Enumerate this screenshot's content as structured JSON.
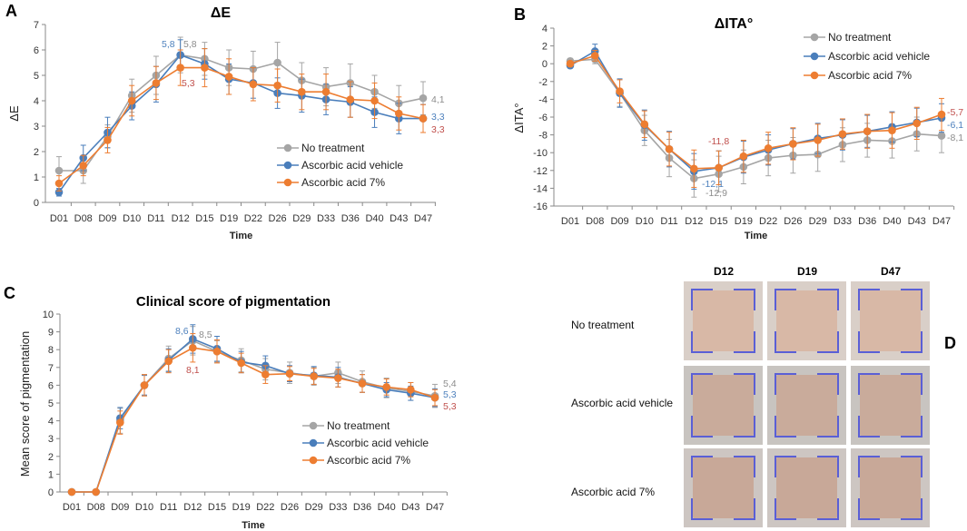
{
  "panels": {
    "A": "A",
    "B": "B",
    "C": "C",
    "D": "D"
  },
  "colors": {
    "no_treatment": "#A5A5A5",
    "vehicle": "#4A7EBB",
    "ac7": "#ED7D31",
    "label_gray": "#8C8C8C",
    "label_blue": "#4E81BD",
    "label_red": "#C0504D"
  },
  "chart_data": [
    {
      "id": "A",
      "type": "line",
      "title": "ΔE",
      "xlabel": "Time",
      "ylabel": "ΔE",
      "ylim": [
        0,
        7
      ],
      "yticks": [
        0,
        1,
        2,
        3,
        4,
        5,
        6,
        7
      ],
      "legend": "bottom-right",
      "grid": false,
      "categories": [
        "D01",
        "D08",
        "D09",
        "D10",
        "D11",
        "D12",
        "D15",
        "D19",
        "D22",
        "D26",
        "D29",
        "D33",
        "D36",
        "D40",
        "D43",
        "D47"
      ],
      "series": [
        {
          "name": "No treatment",
          "color": "#A5A5A5",
          "values": [
            1.25,
            1.25,
            2.6,
            4.2,
            5.0,
            5.8,
            5.65,
            5.3,
            5.25,
            5.5,
            4.8,
            4.55,
            4.7,
            4.35,
            3.9,
            4.1
          ],
          "error": [
            0.55,
            0.5,
            0.45,
            0.65,
            0.75,
            0.7,
            0.65,
            0.7,
            0.7,
            0.8,
            0.7,
            0.75,
            0.75,
            0.65,
            0.7,
            0.65
          ]
        },
        {
          "name": "Ascorbic acid vehicle",
          "color": "#4A7EBB",
          "values": [
            0.4,
            1.75,
            2.75,
            3.8,
            4.65,
            5.8,
            5.45,
            4.85,
            4.7,
            4.3,
            4.2,
            4.05,
            3.95,
            3.55,
            3.3,
            3.3
          ],
          "error": [
            0.15,
            0.5,
            0.6,
            0.55,
            0.7,
            0.6,
            0.6,
            0.6,
            0.6,
            0.6,
            0.65,
            0.6,
            0.6,
            0.6,
            0.6,
            0.55
          ]
        },
        {
          "name": "Ascorbic acid 7%",
          "color": "#ED7D31",
          "values": [
            0.75,
            1.45,
            2.45,
            4.0,
            4.7,
            5.3,
            5.3,
            4.95,
            4.65,
            4.6,
            4.35,
            4.35,
            4.05,
            4.0,
            3.5,
            3.3
          ],
          "error": [
            0.3,
            0.4,
            0.5,
            0.6,
            0.65,
            0.7,
            0.75,
            0.7,
            0.65,
            0.65,
            0.7,
            0.7,
            0.7,
            0.7,
            0.65,
            0.55
          ]
        }
      ],
      "annotations": [
        {
          "text": "5,8",
          "color": "#4E81BD"
        },
        {
          "text": "5,8",
          "color": "#8C8C8C"
        },
        {
          "text": "5,3",
          "color": "#C0504D"
        },
        {
          "text": "4,1",
          "color": "#8C8C8C"
        },
        {
          "text": "3,3",
          "color": "#4E81BD"
        },
        {
          "text": "3,3",
          "color": "#C0504D"
        }
      ]
    },
    {
      "id": "B",
      "type": "line",
      "title": "ΔITA°",
      "xlabel": "Time",
      "ylabel": "ΔITA°",
      "ylim": [
        -16,
        4
      ],
      "yticks": [
        -16,
        -14,
        -12,
        -10,
        -8,
        -6,
        -4,
        -2,
        0,
        2,
        4
      ],
      "legend": "top-right",
      "grid": false,
      "categories": [
        "D01",
        "D08",
        "D09",
        "D10",
        "D11",
        "D12",
        "D15",
        "D19",
        "D22",
        "D26",
        "D29",
        "D33",
        "D36",
        "D40",
        "D43",
        "D47"
      ],
      "series": [
        {
          "name": "No treatment",
          "color": "#A5A5A5",
          "values": [
            0.3,
            0.5,
            -3.3,
            -7.5,
            -10.6,
            -12.9,
            -12.4,
            -11.6,
            -10.6,
            -10.3,
            -10.2,
            -9.1,
            -8.6,
            -8.7,
            -7.9,
            -8.1
          ],
          "error": [
            0.3,
            0.5,
            1.5,
            1.7,
            2.1,
            2.1,
            2.0,
            1.9,
            2.0,
            2.0,
            1.9,
            1.9,
            1.9,
            1.9,
            1.9,
            1.9
          ]
        },
        {
          "name": "Ascorbic acid vehicle",
          "color": "#4A7EBB",
          "values": [
            -0.2,
            1.4,
            -3.3,
            -6.9,
            -9.6,
            -12.1,
            -11.7,
            -10.5,
            -9.7,
            -9.0,
            -8.4,
            -8.0,
            -7.6,
            -7.1,
            -6.6,
            -6.1
          ],
          "error": [
            0.3,
            0.8,
            1.6,
            1.7,
            2.0,
            2.0,
            1.9,
            1.8,
            1.7,
            1.7,
            1.7,
            1.7,
            1.8,
            1.7,
            1.6,
            1.6
          ]
        },
        {
          "name": "Ascorbic acid 7%",
          "color": "#ED7D31",
          "values": [
            0.0,
            0.9,
            -3.1,
            -6.8,
            -9.6,
            -11.8,
            -11.7,
            -10.4,
            -9.5,
            -9.0,
            -8.6,
            -7.9,
            -7.6,
            -7.5,
            -6.7,
            -5.7
          ],
          "error": [
            0.3,
            0.6,
            1.3,
            1.5,
            1.9,
            2.1,
            1.9,
            1.8,
            1.8,
            1.8,
            1.8,
            1.7,
            1.9,
            2.0,
            1.8,
            1.8
          ]
        }
      ],
      "annotations": [
        {
          "text": "-11,8",
          "color": "#C0504D"
        },
        {
          "text": "-12,1",
          "color": "#4E81BD"
        },
        {
          "text": "-12,9",
          "color": "#8C8C8C"
        },
        {
          "text": "-5,7",
          "color": "#C0504D"
        },
        {
          "text": "-6,1",
          "color": "#4E81BD"
        },
        {
          "text": "-8,1",
          "color": "#8C8C8C"
        }
      ]
    },
    {
      "id": "C",
      "type": "line",
      "title": "Clinical score of pigmentation",
      "xlabel": "Time",
      "ylabel": "Mean score of pigmentation",
      "ylim": [
        0,
        10
      ],
      "yticks": [
        0,
        1,
        2,
        3,
        4,
        5,
        6,
        7,
        8,
        9,
        10
      ],
      "legend": "bottom-right",
      "grid": false,
      "categories": [
        "D01",
        "D08",
        "D09",
        "D10",
        "D11",
        "D12",
        "D15",
        "D19",
        "D22",
        "D26",
        "D29",
        "D33",
        "D36",
        "D40",
        "D43",
        "D47"
      ],
      "series": [
        {
          "name": "No treatment",
          "color": "#A5A5A5",
          "values": [
            0,
            0,
            4.0,
            6.0,
            7.5,
            8.5,
            7.9,
            7.4,
            6.9,
            6.7,
            6.5,
            6.7,
            6.2,
            5.85,
            5.65,
            5.4
          ],
          "error": [
            0,
            0,
            0.7,
            0.6,
            0.7,
            0.8,
            0.6,
            0.65,
            0.6,
            0.6,
            0.5,
            0.6,
            0.6,
            0.55,
            0.5,
            0.65
          ]
        },
        {
          "name": "Ascorbic acid vehicle",
          "color": "#4A7EBB",
          "values": [
            0,
            0,
            4.15,
            6.0,
            7.4,
            8.6,
            8.05,
            7.3,
            7.1,
            6.65,
            6.55,
            6.45,
            6.1,
            5.75,
            5.55,
            5.3
          ],
          "error": [
            0,
            0,
            0.6,
            0.55,
            0.65,
            0.8,
            0.7,
            0.6,
            0.55,
            0.45,
            0.5,
            0.55,
            0.5,
            0.4,
            0.4,
            0.5
          ]
        },
        {
          "name": "Ascorbic acid 7%",
          "color": "#ED7D31",
          "values": [
            0,
            0,
            3.9,
            6.0,
            7.35,
            8.1,
            7.9,
            7.25,
            6.6,
            6.65,
            6.5,
            6.4,
            6.1,
            5.9,
            5.75,
            5.3
          ],
          "error": [
            0,
            0,
            0.65,
            0.6,
            0.65,
            0.8,
            0.65,
            0.55,
            0.5,
            0.4,
            0.45,
            0.5,
            0.5,
            0.45,
            0.4,
            0.45
          ]
        }
      ],
      "annotations": [
        {
          "text": "8,6",
          "color": "#4E81BD"
        },
        {
          "text": "8,5",
          "color": "#8C8C8C"
        },
        {
          "text": "8,1",
          "color": "#C0504D"
        },
        {
          "text": "5,4",
          "color": "#8C8C8C"
        },
        {
          "text": "5,3",
          "color": "#4E81BD"
        },
        {
          "text": "5,3",
          "color": "#C0504D"
        }
      ]
    }
  ],
  "photos": {
    "columns": [
      "D12",
      "D19",
      "D47"
    ],
    "rows": [
      {
        "label": "No treatment",
        "background": "#d9cfc8",
        "patch": "#d8b8a6"
      },
      {
        "label": "Ascorbic acid vehicle",
        "background": "#c8c4c0",
        "patch": "#c9ab9b"
      },
      {
        "label": "Ascorbic acid 7%",
        "background": "#cdc6c2",
        "patch": "#c8a898"
      }
    ]
  }
}
